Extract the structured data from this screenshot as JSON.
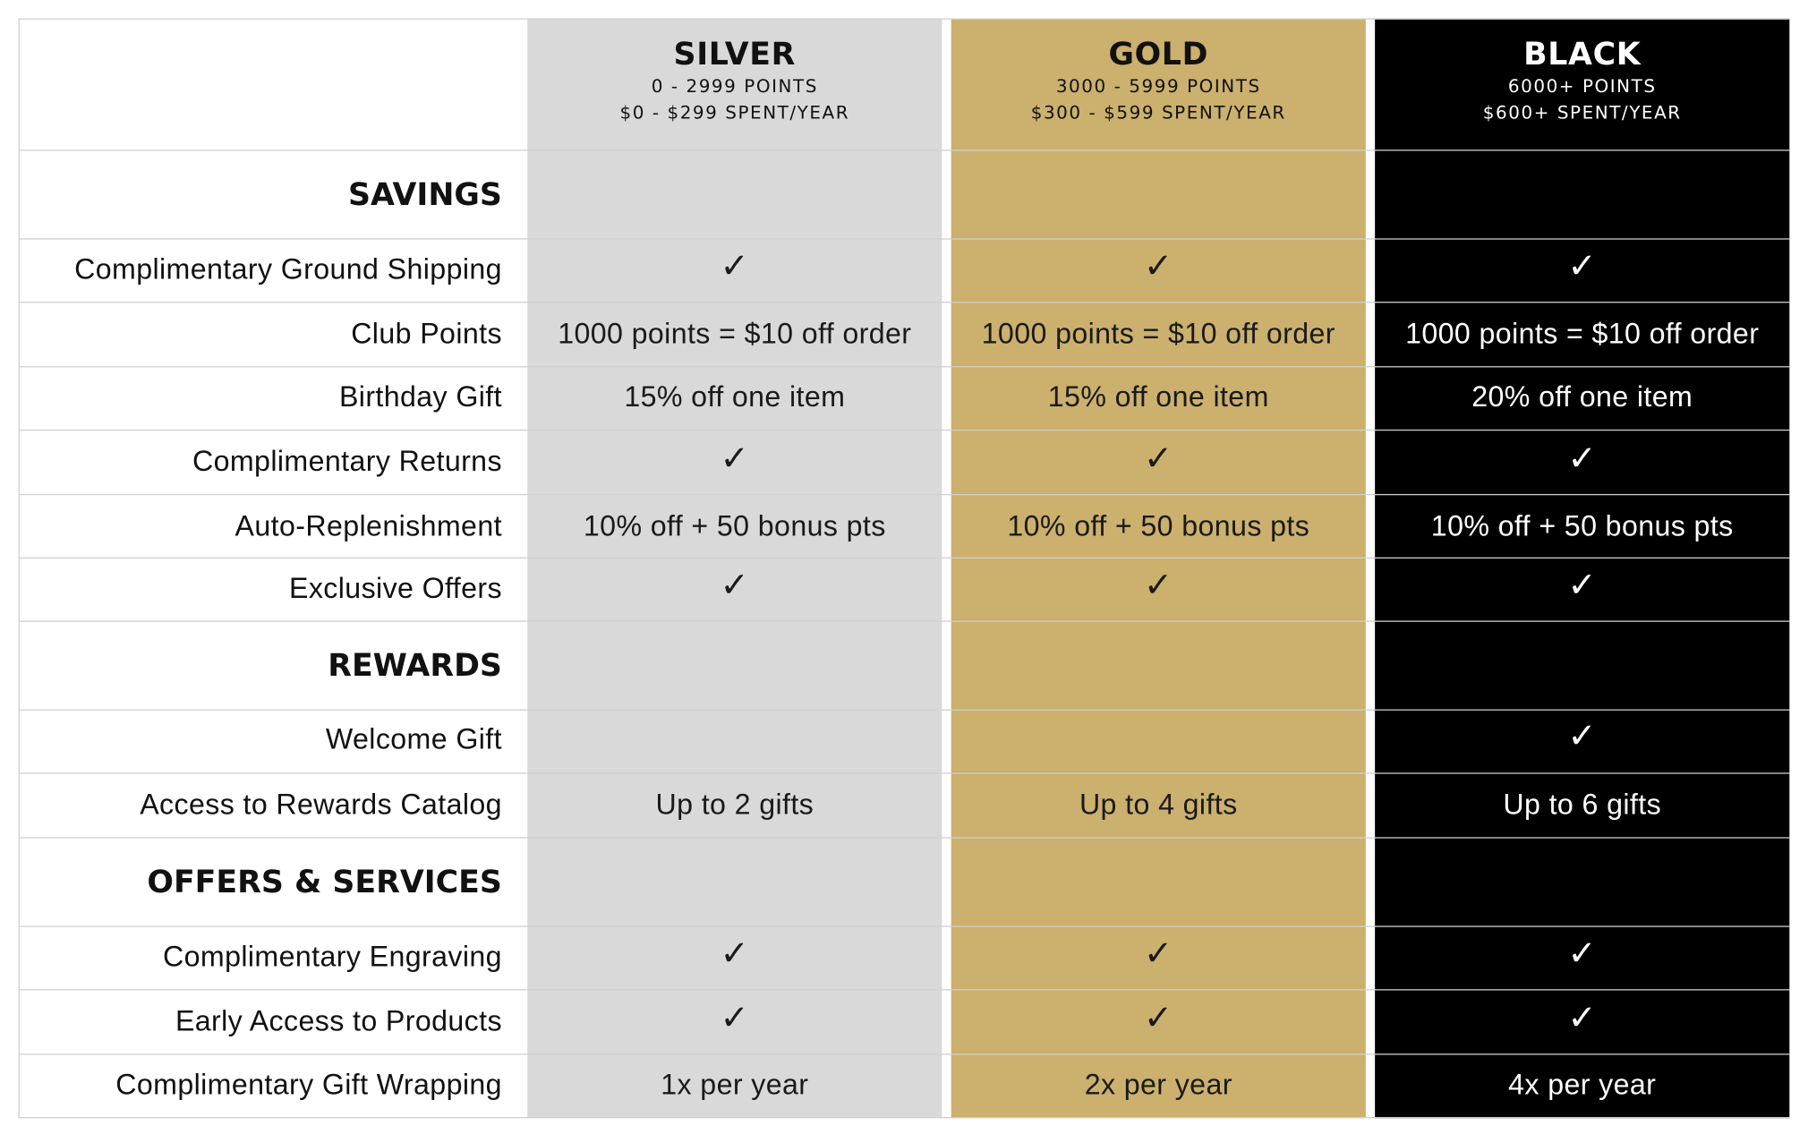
{
  "tiers": [
    {
      "name": "SILVER",
      "points": "0 - 2999 POINTS",
      "spend": "$0 - $299 SPENT/YEAR",
      "color": "#d9d9d9",
      "text_color": "#1a1a1a"
    },
    {
      "name": "GOLD",
      "points": "3000 - 5999 POINTS",
      "spend": "$300 - $599 SPENT/YEAR",
      "color": "#cbb06e",
      "text_color": "#1a1a1a"
    },
    {
      "name": "BLACK",
      "points": "6000+ POINTS",
      "spend": "$600+ SPENT/YEAR",
      "color": "#000000",
      "text_color": "#ffffff"
    }
  ],
  "check_glyph": "✓",
  "sections": {
    "savings": "SAVINGS",
    "rewards": "REWARDS",
    "offers": "OFFERS & SERVICES"
  },
  "rows": {
    "ground_shipping": {
      "label": "Complimentary Ground Shipping",
      "values": [
        "✓",
        "✓",
        "✓"
      ]
    },
    "club_points": {
      "label": "Club Points",
      "values": [
        "1000 points = $10 off order",
        "1000 points = $10 off order",
        "1000 points = $10 off order"
      ]
    },
    "birthday_gift": {
      "label": "Birthday Gift",
      "values": [
        "15% off one item",
        "15% off one item",
        "20% off one item"
      ]
    },
    "returns": {
      "label": "Complimentary Returns",
      "values": [
        "✓",
        "✓",
        "✓"
      ]
    },
    "auto_replenishment": {
      "label": "Auto-Replenishment",
      "values": [
        "10% off + 50 bonus pts",
        "10% off + 50 bonus pts",
        "10% off + 50 bonus pts"
      ]
    },
    "exclusive_offers": {
      "label": "Exclusive Offers",
      "values": [
        "✓",
        "✓",
        "✓"
      ]
    },
    "welcome_gift": {
      "label": "Welcome Gift",
      "values": [
        "",
        "",
        "✓"
      ]
    },
    "rewards_catalog": {
      "label": "Access to Rewards Catalog",
      "values": [
        "Up to 2 gifts",
        "Up to 4 gifts",
        "Up to 6 gifts"
      ]
    },
    "engraving": {
      "label": "Complimentary Engraving",
      "values": [
        "✓",
        "✓",
        "✓"
      ]
    },
    "early_access": {
      "label": "Early Access to Products",
      "values": [
        "✓",
        "✓",
        "✓"
      ]
    },
    "gift_wrapping": {
      "label": "Complimentary Gift Wrapping",
      "values": [
        "1x per year",
        "2x per year",
        "4x per year"
      ]
    }
  }
}
